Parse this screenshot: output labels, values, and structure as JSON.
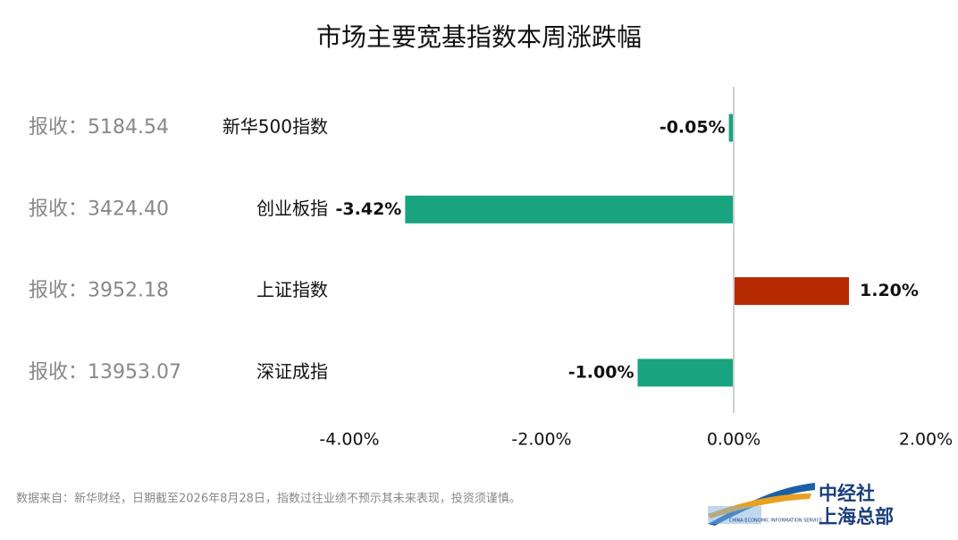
{
  "chart_data": {
    "type": "hbar",
    "title": "市场主要宽基指数本周涨跌幅",
    "categories": [
      "新华500指数",
      "创业板指",
      "上证指数",
      "深证成指"
    ],
    "close_labels": [
      "报收：5184.54",
      "报收：3424.40",
      "报收：3952.18",
      "报收：13953.07"
    ],
    "values": [
      -0.05,
      -3.42,
      1.2,
      -1.0
    ],
    "value_labels": [
      "-0.05%",
      "-3.42%",
      "1.20%",
      "-1.00%"
    ],
    "positive_color": "#b62a00",
    "negative_color": "#19a37f",
    "xlim": [
      -4,
      2
    ],
    "xticks": [
      {
        "value": -4,
        "label": "-4.00%"
      },
      {
        "value": -2,
        "label": "-2.00%"
      },
      {
        "value": 0,
        "label": "0.00%"
      },
      {
        "value": 2,
        "label": "2.00%"
      }
    ],
    "grid": false
  },
  "footnote": "数据来自：新华财经，日期截至2026年8月28日，指数过往业绩不预示其未来表现，投资须谨慎。",
  "logo": {
    "name": "中经社",
    "branch": "上海总部",
    "english": "CHINA ECONOMIC INFORMATION SERVICE"
  }
}
